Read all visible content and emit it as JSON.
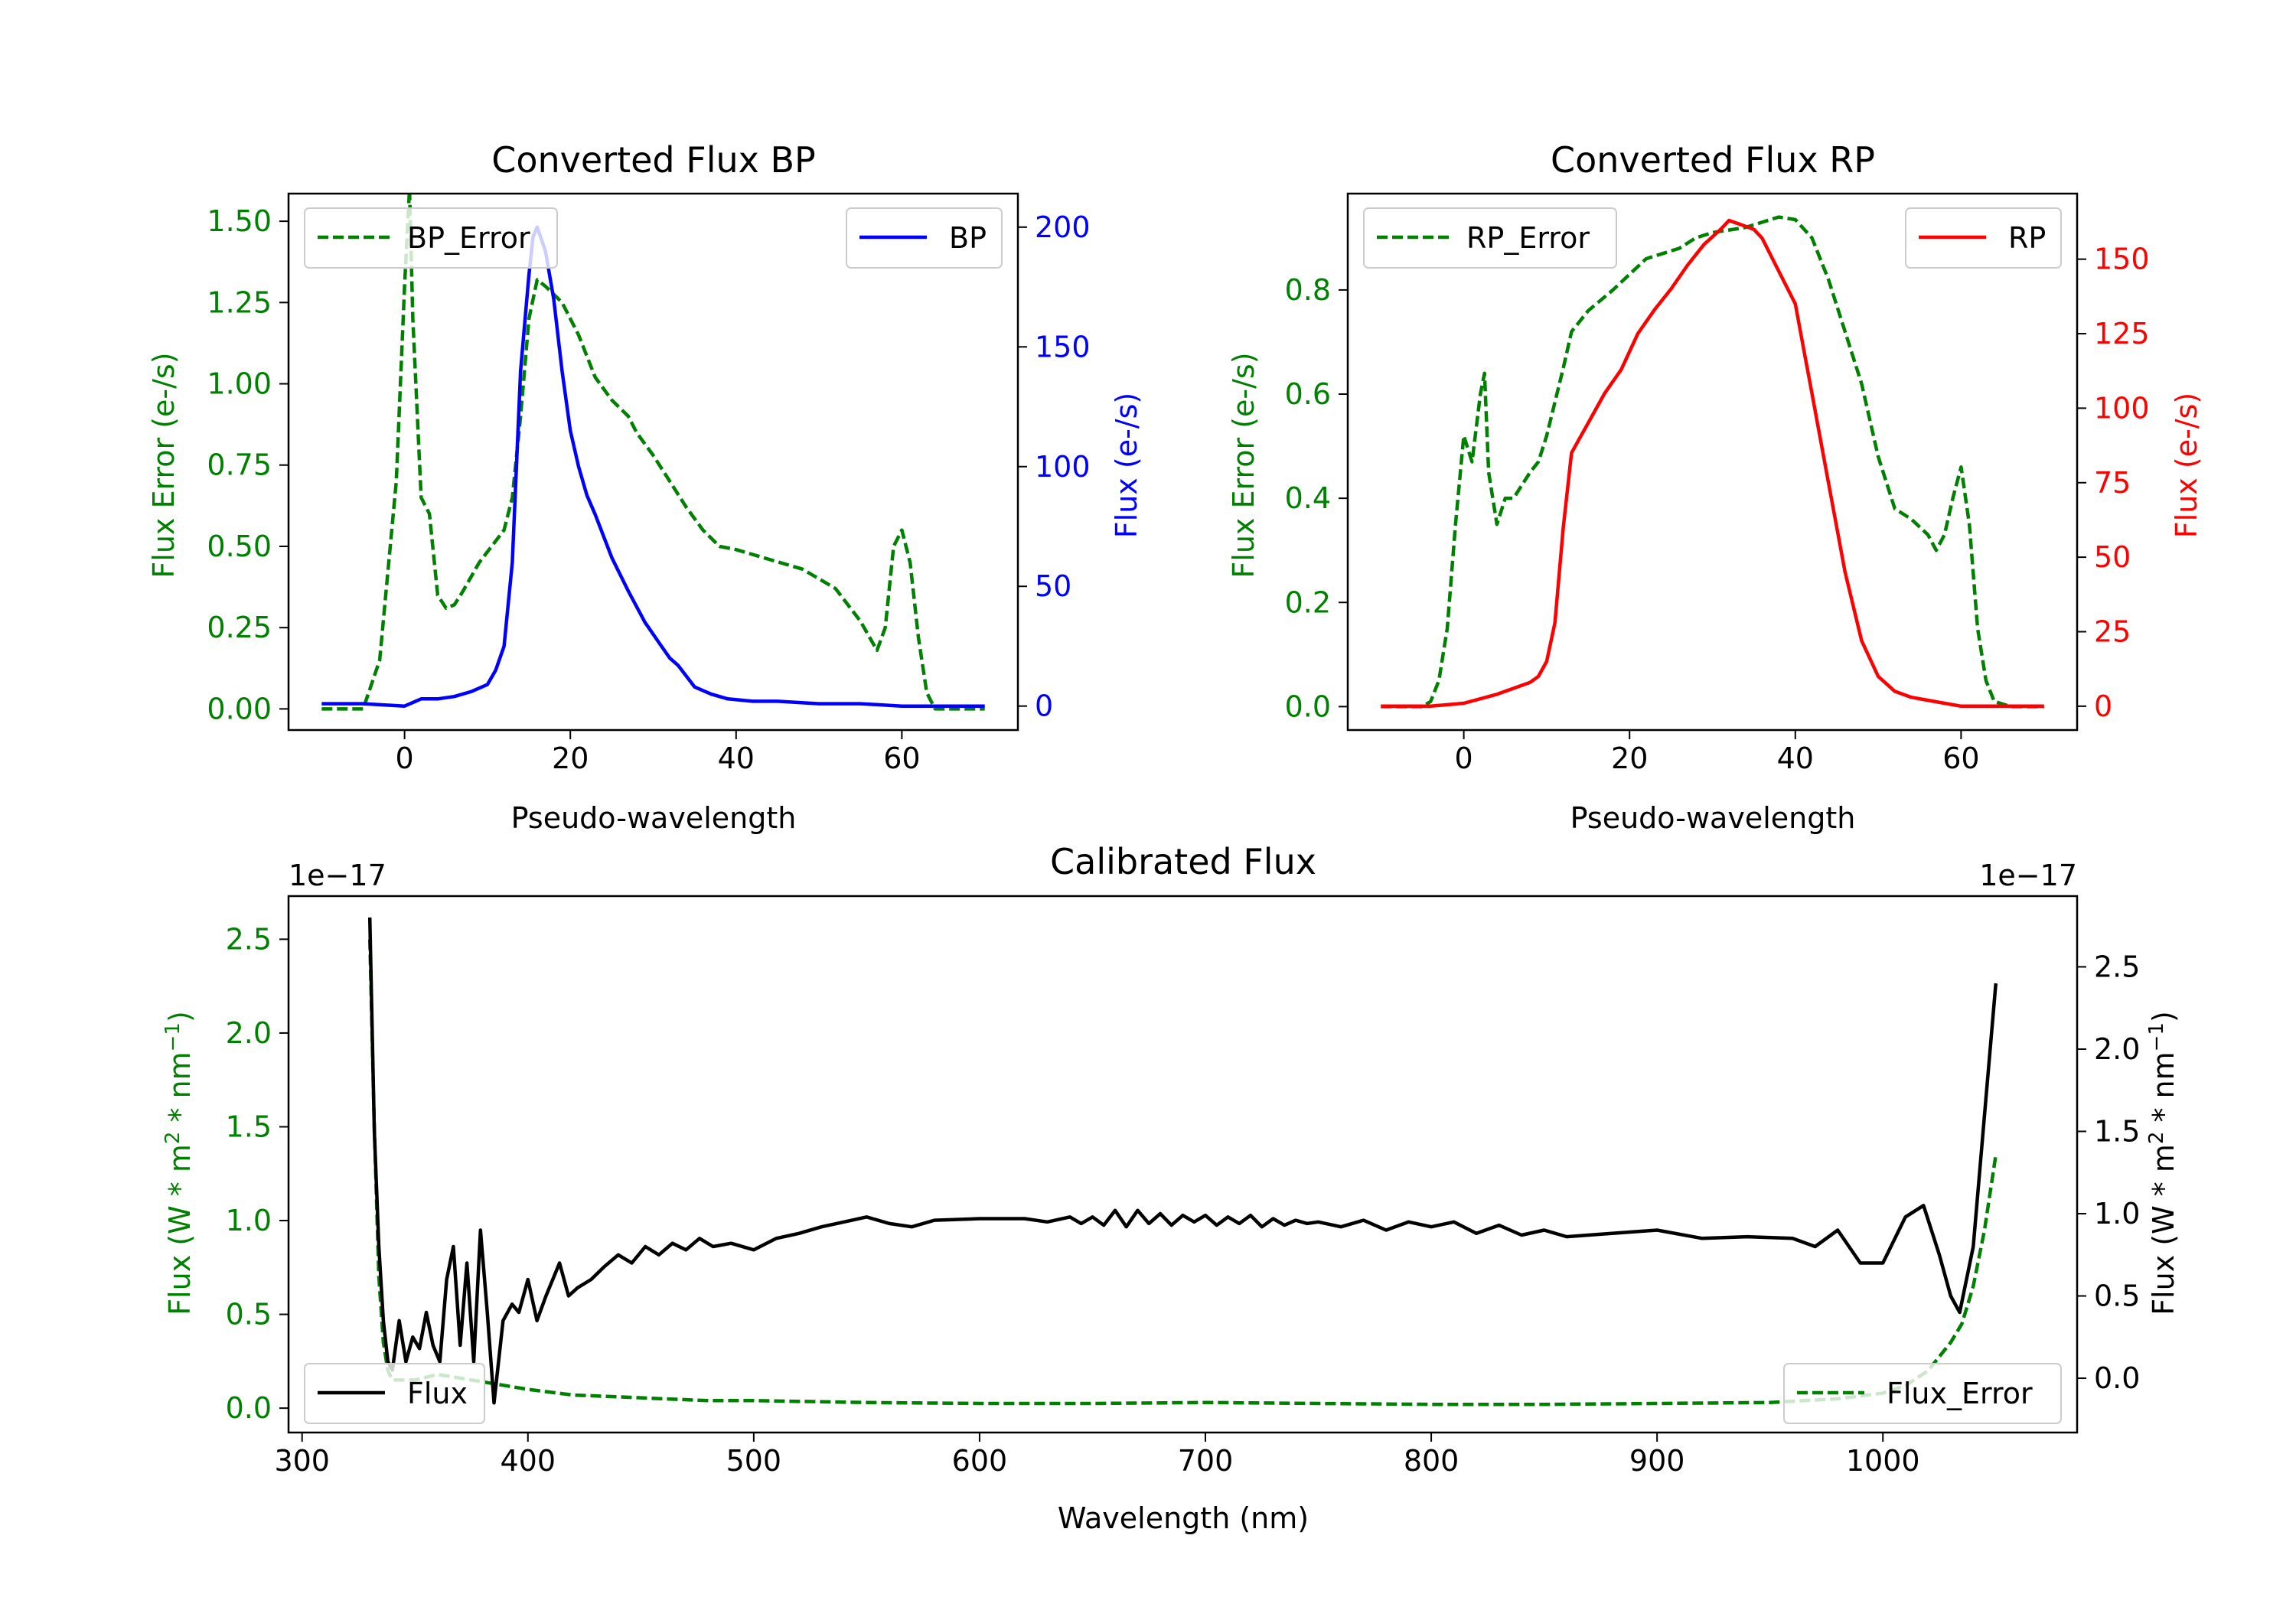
{
  "chart_data": [
    {
      "type": "line",
      "title": "Converted Flux BP",
      "xlabel": "Pseudo-wavelength",
      "ylabel_left": "Flux Error (e-/s)",
      "ylabel_right": "Flux (e-/s)",
      "xlim": [
        -14,
        74
      ],
      "ylim_left": [
        -0.065,
        1.585
      ],
      "ylim_right": [
        -10,
        214
      ],
      "xticks": [
        0,
        20,
        40,
        60
      ],
      "yticks_left": [
        0.0,
        0.25,
        0.5,
        0.75,
        1.0,
        1.25,
        1.5
      ],
      "yticks_right": [
        0,
        50,
        100,
        150,
        200
      ],
      "colors": {
        "left_axis": "#008000",
        "right_axis": "#0000ff"
      },
      "series": [
        {
          "name": "BP_Error",
          "axis": "left",
          "style": "dashed",
          "color": "#008000",
          "x": [
            -10,
            -5,
            -3,
            -1,
            0,
            0.6,
            1,
            2,
            3,
            4,
            5,
            6,
            7,
            9,
            12,
            13,
            14,
            15,
            16,
            17,
            19,
            21,
            23,
            25,
            27,
            28,
            30,
            32,
            34,
            36,
            38,
            40,
            44,
            48,
            50,
            52,
            55,
            57,
            58,
            59,
            60,
            61,
            62,
            63,
            64,
            66,
            70
          ],
          "values": [
            0.0,
            0.0,
            0.15,
            0.7,
            1.3,
            1.6,
            1.2,
            0.65,
            0.6,
            0.35,
            0.31,
            0.32,
            0.36,
            0.45,
            0.55,
            0.65,
            0.9,
            1.2,
            1.32,
            1.3,
            1.25,
            1.15,
            1.02,
            0.95,
            0.9,
            0.85,
            0.78,
            0.7,
            0.62,
            0.55,
            0.5,
            0.49,
            0.46,
            0.43,
            0.4,
            0.37,
            0.27,
            0.18,
            0.25,
            0.5,
            0.55,
            0.45,
            0.22,
            0.05,
            0.0,
            0.0,
            0.0
          ]
        },
        {
          "name": "BP",
          "axis": "right",
          "style": "solid",
          "color": "#0000ff",
          "x": [
            -10,
            -5,
            0,
            2,
            4,
            6,
            8,
            10,
            11,
            12,
            13,
            14,
            15,
            15.5,
            16,
            17,
            18,
            19,
            20,
            21,
            22,
            23,
            25,
            27,
            29,
            31,
            32,
            33,
            35,
            37,
            39,
            42,
            45,
            50,
            55,
            60,
            65,
            70
          ],
          "values": [
            1,
            1,
            0,
            3,
            3,
            4,
            6,
            9,
            15,
            25,
            60,
            140,
            180,
            196,
            200,
            190,
            170,
            140,
            115,
            100,
            88,
            80,
            62,
            48,
            35,
            25,
            20,
            17,
            8,
            5,
            3,
            2,
            2,
            1,
            1,
            0,
            0,
            0
          ]
        }
      ],
      "legends": [
        {
          "entries": [
            "BP_Error"
          ],
          "placement": "top-left"
        },
        {
          "entries": [
            "BP"
          ],
          "placement": "top-right"
        }
      ]
    },
    {
      "type": "line",
      "title": "Converted Flux RP",
      "xlabel": "Pseudo-wavelength",
      "ylabel_left": "Flux Error (e-/s)",
      "ylabel_right": "Flux (e-/s)",
      "xlim": [
        -14,
        74
      ],
      "ylim_left": [
        -0.045,
        0.985
      ],
      "ylim_right": [
        -8,
        172
      ],
      "xticks": [
        0,
        20,
        40,
        60
      ],
      "yticks_left": [
        0.0,
        0.2,
        0.4,
        0.6,
        0.8
      ],
      "yticks_right": [
        0,
        25,
        50,
        75,
        100,
        125,
        150
      ],
      "colors": {
        "left_axis": "#008000",
        "right_axis": "#ff0000"
      },
      "series": [
        {
          "name": "RP_Error",
          "axis": "left",
          "style": "dashed",
          "color": "#008000",
          "x": [
            -10,
            -5,
            -4,
            -3,
            -2,
            -1,
            0,
            1,
            2,
            2.5,
            3,
            4,
            5,
            6,
            8,
            9,
            10,
            12,
            13,
            15,
            18,
            20,
            22,
            24,
            26,
            28,
            30,
            32,
            34,
            36,
            38,
            40,
            42,
            44,
            46,
            48,
            50,
            52,
            54,
            56,
            57,
            58,
            59,
            60,
            61,
            62,
            63,
            64,
            66,
            70
          ],
          "values": [
            0.0,
            0.0,
            0.01,
            0.05,
            0.15,
            0.35,
            0.52,
            0.47,
            0.6,
            0.64,
            0.45,
            0.35,
            0.4,
            0.4,
            0.45,
            0.47,
            0.52,
            0.65,
            0.72,
            0.76,
            0.8,
            0.83,
            0.86,
            0.87,
            0.88,
            0.9,
            0.91,
            0.915,
            0.92,
            0.93,
            0.94,
            0.935,
            0.9,
            0.82,
            0.72,
            0.62,
            0.48,
            0.38,
            0.36,
            0.33,
            0.3,
            0.33,
            0.4,
            0.46,
            0.35,
            0.15,
            0.05,
            0.01,
            0.0,
            0.0
          ]
        },
        {
          "name": "RP",
          "axis": "right",
          "style": "solid",
          "color": "#ff0000",
          "x": [
            -10,
            -4,
            0,
            4,
            6,
            8,
            9,
            10,
            11,
            12,
            13,
            14,
            15,
            17,
            19,
            21,
            23,
            25,
            27,
            29,
            31,
            32,
            33,
            34,
            35,
            36,
            38,
            40,
            41,
            42,
            44,
            46,
            48,
            50,
            52,
            54,
            56,
            58,
            60,
            62,
            64,
            70
          ],
          "values": [
            0,
            0,
            1,
            4,
            6,
            8,
            10,
            15,
            28,
            60,
            85,
            90,
            95,
            105,
            113,
            125,
            133,
            140,
            148,
            155,
            160,
            163,
            162,
            161,
            160,
            157,
            146,
            135,
            120,
            105,
            75,
            45,
            22,
            10,
            5,
            3,
            2,
            1,
            0,
            0,
            0,
            0
          ]
        }
      ],
      "legends": [
        {
          "entries": [
            "RP_Error"
          ],
          "placement": "top-left"
        },
        {
          "entries": [
            "RP"
          ],
          "placement": "top-right"
        }
      ]
    },
    {
      "type": "line",
      "title": "Calibrated Flux",
      "xlabel": "Wavelength (nm)",
      "ylabel_left": "Flux (W * m2 * nm-1)",
      "ylabel_right": "Flux (W * m2 * nm-1)",
      "offset_text_left": "1e−17",
      "offset_text_right": "1e−17",
      "xlim": [
        294,
        1086
      ],
      "ylim_left": [
        -0.13,
        2.73
      ],
      "ylim_right": [
        -0.33,
        2.93
      ],
      "xticks": [
        300,
        400,
        500,
        600,
        700,
        800,
        900,
        1000
      ],
      "yticks_left": [
        0.0,
        0.5,
        1.0,
        1.5,
        2.0,
        2.5
      ],
      "yticks_right": [
        0.0,
        0.5,
        1.0,
        1.5,
        2.0,
        2.5
      ],
      "colors": {
        "left_axis": "#008000",
        "right_axis": "#000000"
      },
      "series": [
        {
          "name": "Flux_Error",
          "axis": "left",
          "style": "dashed",
          "color": "#008000",
          "x": [
            330,
            332,
            334,
            336,
            338,
            340,
            350,
            360,
            370,
            380,
            390,
            400,
            420,
            440,
            460,
            480,
            500,
            550,
            600,
            650,
            700,
            750,
            800,
            850,
            900,
            950,
            980,
            1000,
            1010,
            1020,
            1030,
            1035,
            1040,
            1045,
            1050
          ],
          "values": [
            2.5,
            1.5,
            0.7,
            0.35,
            0.2,
            0.15,
            0.15,
            0.18,
            0.16,
            0.14,
            0.12,
            0.1,
            0.07,
            0.06,
            0.05,
            0.04,
            0.04,
            0.03,
            0.025,
            0.025,
            0.03,
            0.025,
            0.02,
            0.02,
            0.025,
            0.03,
            0.05,
            0.08,
            0.12,
            0.2,
            0.35,
            0.45,
            0.65,
            0.95,
            1.35
          ]
        },
        {
          "name": "Flux",
          "axis": "right",
          "style": "solid",
          "color": "#000000",
          "x": [
            330,
            332,
            334,
            336,
            338,
            340,
            343,
            346,
            349,
            352,
            355,
            358,
            361,
            364,
            367,
            370,
            373,
            376,
            379,
            382,
            385,
            389,
            393,
            396,
            400,
            404,
            408,
            414,
            418,
            422,
            428,
            434,
            440,
            446,
            452,
            458,
            464,
            470,
            476,
            482,
            490,
            500,
            510,
            520,
            530,
            540,
            550,
            560,
            570,
            580,
            600,
            620,
            630,
            640,
            645,
            650,
            655,
            660,
            665,
            670,
            675,
            680,
            685,
            690,
            695,
            700,
            705,
            710,
            715,
            720,
            725,
            730,
            735,
            740,
            745,
            750,
            760,
            770,
            780,
            790,
            800,
            810,
            820,
            830,
            840,
            850,
            860,
            880,
            900,
            920,
            940,
            960,
            970,
            980,
            990,
            1000,
            1010,
            1018,
            1025,
            1030,
            1034,
            1040,
            1045,
            1050
          ],
          "values": [
            2.8,
            1.5,
            0.8,
            0.35,
            0.1,
            0.05,
            0.35,
            0.1,
            0.25,
            0.18,
            0.4,
            0.2,
            0.1,
            0.6,
            0.8,
            0.2,
            0.7,
            0.1,
            0.9,
            0.4,
            -0.15,
            0.35,
            0.45,
            0.4,
            0.6,
            0.35,
            0.5,
            0.7,
            0.5,
            0.55,
            0.6,
            0.68,
            0.75,
            0.7,
            0.8,
            0.75,
            0.82,
            0.78,
            0.85,
            0.8,
            0.82,
            0.78,
            0.85,
            0.88,
            0.92,
            0.95,
            0.98,
            0.94,
            0.92,
            0.96,
            0.97,
            0.97,
            0.95,
            0.98,
            0.94,
            0.98,
            0.93,
            1.02,
            0.92,
            1.02,
            0.94,
            1.0,
            0.93,
            0.99,
            0.95,
            0.99,
            0.93,
            0.98,
            0.94,
            0.99,
            0.92,
            0.97,
            0.93,
            0.96,
            0.94,
            0.95,
            0.92,
            0.96,
            0.9,
            0.95,
            0.92,
            0.95,
            0.88,
            0.93,
            0.87,
            0.9,
            0.86,
            0.88,
            0.9,
            0.85,
            0.86,
            0.85,
            0.8,
            0.9,
            0.7,
            0.7,
            0.98,
            1.05,
            0.75,
            0.5,
            0.4,
            0.8,
            1.6,
            2.4
          ]
        }
      ],
      "legends": [
        {
          "entries": [
            "Flux"
          ],
          "placement": "bottom-left"
        },
        {
          "entries": [
            "Flux_Error"
          ],
          "placement": "bottom-right"
        }
      ]
    }
  ]
}
